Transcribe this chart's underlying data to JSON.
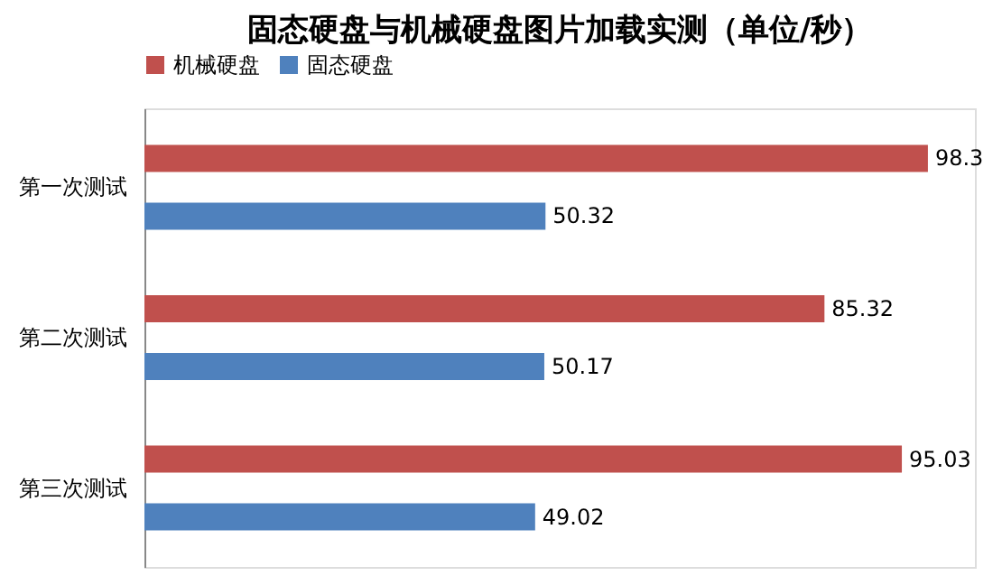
{
  "chart_data": {
    "type": "bar",
    "orientation": "horizontal",
    "title": "固态硬盘与机械硬盘图片加载实测（单位/秒）",
    "categories": [
      "第一次测试",
      "第二次测试",
      "第三次测试"
    ],
    "series": [
      {
        "name": "机械硬盘",
        "color": "#c0504d",
        "values": [
          98.3,
          85.32,
          95.03
        ]
      },
      {
        "name": "固态硬盘",
        "color": "#4f81bd",
        "values": [
          50.32,
          50.17,
          49.02
        ]
      }
    ],
    "data_labels": true,
    "legend": "top",
    "grid": false
  }
}
